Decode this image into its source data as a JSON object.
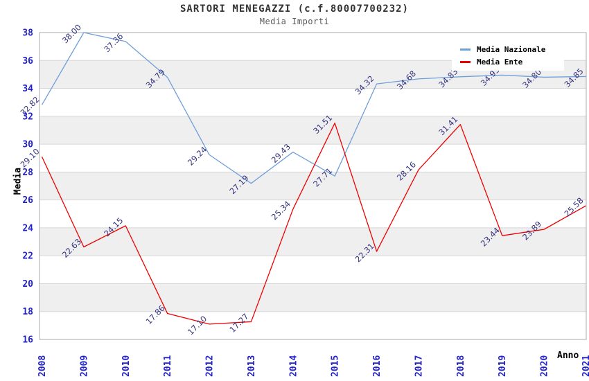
{
  "title": "SARTORI MENEGAZZI (c.f.80007700232)",
  "subtitle": "Media Importi",
  "legend": {
    "items": [
      {
        "label": "Media Nazionale"
      },
      {
        "label": "Media Ente"
      }
    ]
  },
  "colors": {
    "national_line": "#6f9fd8",
    "entity_line": "#ee0000",
    "axis_tick": "#2222cc",
    "point_label": "#333380",
    "band": "#efefef",
    "grid": "#d6d6d6",
    "border": "#ababab"
  },
  "chart_data": {
    "type": "line",
    "title": "SARTORI MENEGAZZI (c.f.80007700232)",
    "subtitle": "Media Importi",
    "xlabel": "Anno",
    "ylabel": "Media",
    "x": [
      2008,
      2009,
      2010,
      2011,
      2012,
      2013,
      2014,
      2015,
      2016,
      2017,
      2018,
      2019,
      2020,
      2021
    ],
    "series": [
      {
        "name": "Media Nazionale",
        "color": "#6f9fd8",
        "values": [
          32.82,
          38.0,
          37.36,
          34.79,
          29.24,
          27.19,
          29.43,
          27.71,
          34.32,
          34.68,
          34.83,
          34.95,
          34.8,
          34.85
        ]
      },
      {
        "name": "Media Ente",
        "color": "#ee0000",
        "values": [
          29.1,
          22.63,
          24.15,
          17.86,
          17.1,
          17.27,
          25.34,
          31.51,
          22.31,
          28.16,
          31.41,
          23.44,
          23.89,
          25.58
        ]
      }
    ],
    "ylim": [
      16,
      38
    ],
    "ytick_step": 2,
    "grid": true,
    "band_fill": "alternating",
    "legend_position": "top-right",
    "point_labels_rotated_deg": -45
  }
}
